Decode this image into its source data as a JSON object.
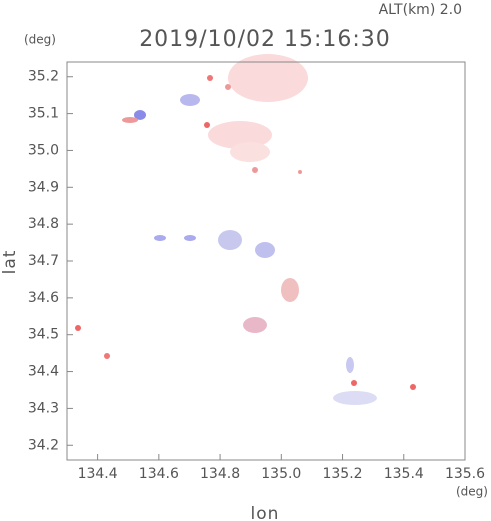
{
  "chart_data": {
    "type": "map",
    "title": "2019/10/02 15:16:30",
    "subtitle": "ALT(km) 2.0",
    "x_label": "lon",
    "y_label": "lat",
    "x_unit": "(deg)",
    "y_unit": "(deg)",
    "xlim": [
      134.3,
      135.6
    ],
    "ylim": [
      34.16,
      35.24
    ],
    "xticks": [
      134.4,
      134.6,
      134.8,
      {
        "value": 135,
        "label": "135.0"
      },
      135.2,
      135.4,
      135.6
    ],
    "yticks": [
      34.2,
      34.3,
      34.4,
      34.5,
      34.6,
      34.7,
      34.8,
      34.9,
      {
        "value": 35,
        "label": "35.0"
      },
      35.1,
      35.2
    ]
  }
}
